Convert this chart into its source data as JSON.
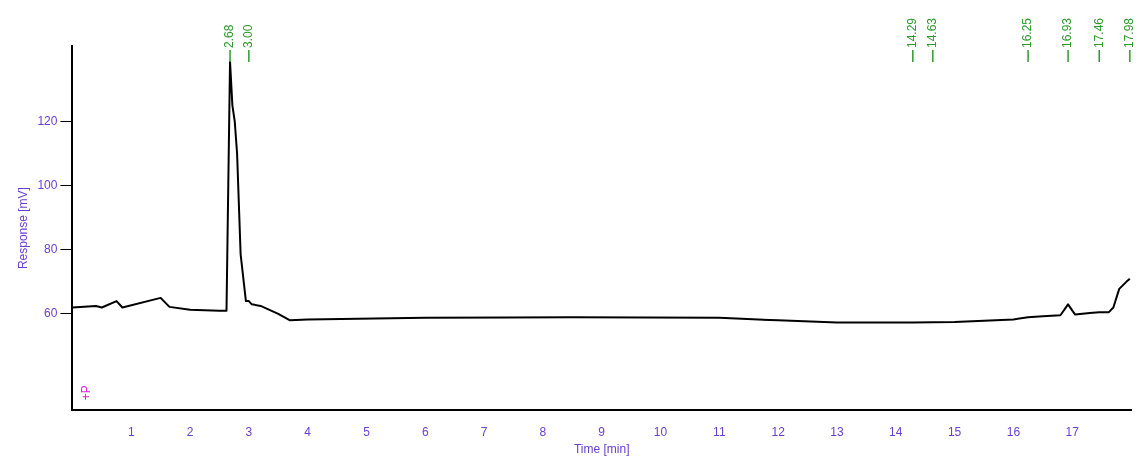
{
  "chart_data": {
    "type": "line",
    "xlabel": "Time [min]",
    "ylabel": "Response [mV]",
    "x": [
      0,
      0.4,
      0.5,
      0.75,
      0.85,
      1.5,
      1.65,
      2.0,
      2.5,
      2.62,
      2.68,
      2.72,
      2.76,
      2.8,
      2.86,
      2.95,
      3.0,
      3.05,
      3.2,
      3.5,
      3.7,
      4.0,
      6.0,
      8.5,
      11.0,
      12.0,
      13.0,
      14.0,
      14.29,
      14.63,
      15.0,
      16.0,
      16.25,
      16.5,
      16.8,
      16.93,
      17.05,
      17.3,
      17.46,
      17.62,
      17.7,
      17.8,
      17.92,
      17.98
    ],
    "series": [
      {
        "color": "#000000",
        "values": [
          62,
          62.5,
          62,
          64,
          62,
          65,
          62.2,
          61.3,
          61,
          61,
          138.6,
          125,
          120,
          110,
          78.6,
          64,
          64,
          63,
          62.5,
          60,
          58,
          58.3,
          58.8,
          59,
          58.8,
          58,
          57.3,
          57.3,
          57.3,
          57.4,
          57.5,
          58.3,
          59,
          59.3,
          59.6,
          63,
          59.8,
          60.3,
          60.5,
          60.5,
          62,
          67.8,
          70,
          71
        ]
      }
    ],
    "xlim": [
      0,
      18
    ],
    "ylim": [
      30,
      143.5
    ],
    "xticks": [
      {
        "value": 0,
        "label": null
      },
      1,
      2,
      3,
      4,
      5,
      6,
      7,
      8,
      9,
      10,
      11,
      12,
      13,
      14,
      15,
      16,
      17
    ],
    "yticks": [
      60,
      80,
      100,
      120
    ],
    "grid": false,
    "legend": false,
    "marker": "none",
    "line_style": "solid",
    "annotations": [
      {
        "text": "2.68",
        "x": 2.68
      },
      {
        "text": "3.00",
        "x": 3.0
      },
      {
        "text": "14.29",
        "x": 14.29
      },
      {
        "text": "14.63",
        "x": 14.63
      },
      {
        "text": "16.25",
        "x": 16.25
      },
      {
        "text": "16.93",
        "x": 16.93
      },
      {
        "text": "17.46",
        "x": 17.46
      },
      {
        "text": "17.98",
        "x": 17.98
      },
      "+P"
    ]
  }
}
